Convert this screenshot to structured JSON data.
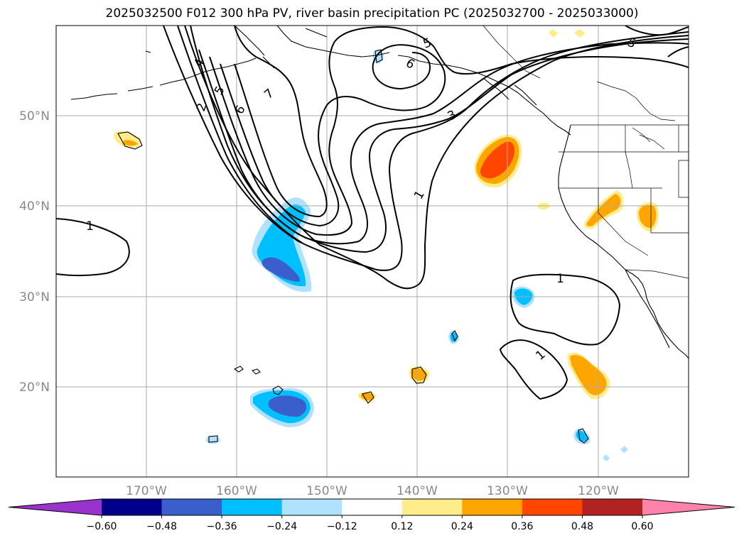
{
  "title": "2025032500 F012 300 hPa PV, river basin precipitation PC (2025032700 - 2025033000)",
  "map": {
    "projection": "PlateCarree",
    "lon_range": [
      -180,
      -110
    ],
    "lat_range": [
      10,
      60
    ],
    "gridlines": true,
    "lon_ticks": [
      "170°W",
      "160°W",
      "150°W",
      "140°W",
      "130°W",
      "120°W"
    ],
    "lat_ticks": [
      "50°N",
      "40°N",
      "30°N",
      "20°N"
    ]
  },
  "pv_contours": {
    "levels": [
      "1",
      "2",
      "3",
      "4",
      "5",
      "6",
      "7"
    ],
    "labels_shown": [
      "1",
      "1",
      "1",
      "1",
      "2",
      "3",
      "4",
      "5",
      "5",
      "5",
      "6",
      "6",
      "7"
    ]
  },
  "colorbar": {
    "ticks": [
      "−0.60",
      "−0.48",
      "−0.36",
      "−0.24",
      "−0.12",
      "0.12",
      "0.24",
      "0.36",
      "0.48",
      "0.60"
    ],
    "colors": [
      "#9933cc",
      "#00008b",
      "#3a5fcd",
      "#00bfff",
      "#b0e2ff",
      "#ffffff",
      "#ffec8b",
      "#ffa500",
      "#ff4500",
      "#b22222",
      "#ff82ab"
    ],
    "extend": "both"
  },
  "shading": {
    "negative_colors": [
      "#b0e2ff",
      "#00bfff",
      "#3a5fcd"
    ],
    "positive_colors": [
      "#ffec8b",
      "#ffa500",
      "#ff4500"
    ]
  }
}
